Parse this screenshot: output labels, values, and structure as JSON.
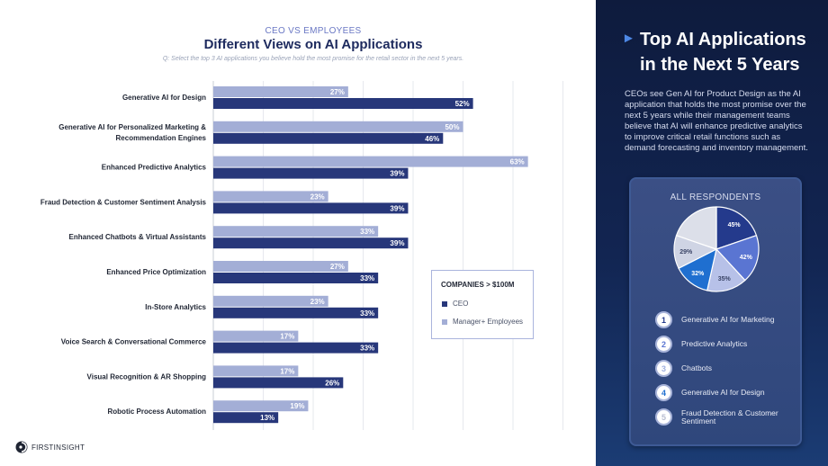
{
  "header": {
    "kicker": "CEO VS EMPLOYEES",
    "title": "Different Views on AI Applications",
    "question": "Q: Select the top 3 AI applications you believe hold the most promise for the retail sector in the next 5 years."
  },
  "chart_data": {
    "type": "bar",
    "orientation": "horizontal",
    "title": "Different Views on AI Applications",
    "categories": [
      [
        "Generative AI for Design"
      ],
      [
        "Generative AI for Personalized Marketing &",
        "Recommendation Engines"
      ],
      [
        "Enhanced Predictive Analytics"
      ],
      [
        "Fraud Detection & Customer Sentiment Analysis"
      ],
      [
        "Enhanced Chatbots & Virtual Assistants"
      ],
      [
        "Enhanced Price Optimization"
      ],
      [
        "In-Store Analytics"
      ],
      [
        "Voice Search & Conversational Commerce"
      ],
      [
        "Visual Recognition & AR Shopping"
      ],
      [
        "Robotic Process Automation"
      ]
    ],
    "series": [
      {
        "name": "Manager+ Employees",
        "color": "#a3aed6",
        "values": [
          27,
          50,
          63,
          23,
          33,
          27,
          23,
          17,
          17,
          19
        ]
      },
      {
        "name": "CEO",
        "color": "#27377a",
        "values": [
          52,
          46,
          39,
          39,
          39,
          33,
          33,
          33,
          26,
          13
        ]
      }
    ],
    "value_suffix": "%",
    "xlim": [
      0,
      70
    ],
    "grid": true
  },
  "legend": {
    "title": "COMPANIES > $100M",
    "items": [
      {
        "label": "CEO",
        "color": "#27377a"
      },
      {
        "label": "Manager+ Employees",
        "color": "#a3aed6"
      }
    ]
  },
  "brand": {
    "name": "FIRSTINSIGHT"
  },
  "side": {
    "title": "Top AI Applications in the Next 5 Years",
    "description": "CEOs see Gen AI for Product Design as the AI application that holds the most promise over the next 5 years while their management teams believe that AI will enhance predictive analytics to improve critical retail functions such as demand forecasting and inventory management."
  },
  "respondents": {
    "title": "ALL RESPONDENTS",
    "pie": [
      {
        "value": 45,
        "label": "45%",
        "color": "#243a8c"
      },
      {
        "value": 42,
        "label": "42%",
        "color": "#5a75d2"
      },
      {
        "value": 35,
        "label": "35%",
        "color": "#b7c1e8"
      },
      {
        "value": 32,
        "label": "32%",
        "color": "#1f6fd0"
      },
      {
        "value": 29,
        "label": "29%",
        "color": "#cfd4e4"
      },
      {
        "value": 45,
        "label": "",
        "color": "#dcdfe9"
      }
    ],
    "ranking": [
      {
        "rank": "1",
        "label": "Generative AI for Marketing",
        "color": "#243a8c"
      },
      {
        "rank": "2",
        "label": "Predictive Analytics",
        "color": "#5a75d2"
      },
      {
        "rank": "3",
        "label": "Chatbots",
        "color": "#9fb0df"
      },
      {
        "rank": "4",
        "label": "Generative AI for Design",
        "color": "#1f6fd0"
      },
      {
        "rank": "5",
        "label": "Fraud Detection & Customer Sentiment",
        "color": "#b8bdd0"
      }
    ]
  }
}
